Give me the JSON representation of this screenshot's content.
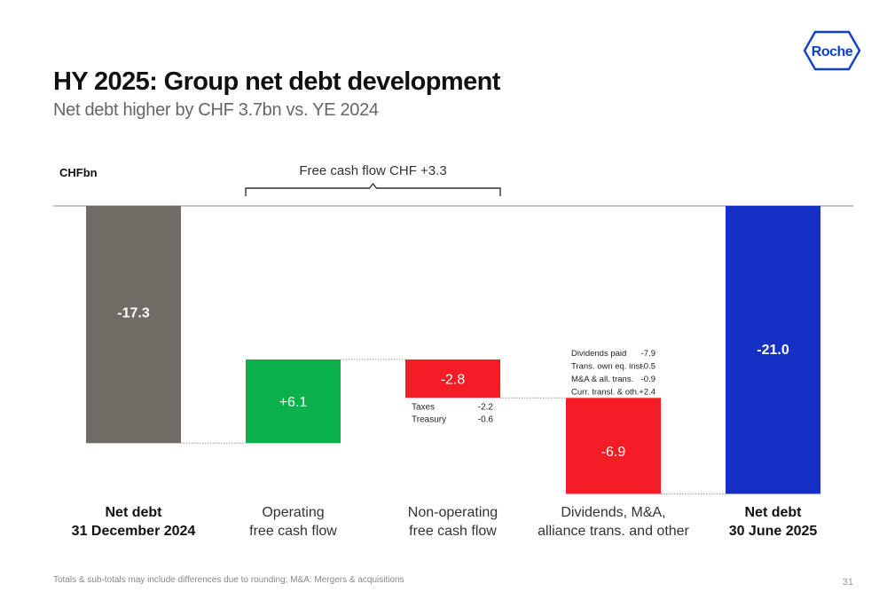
{
  "slide": {
    "title": "HY 2025: Group net debt development",
    "subtitle": "Net debt higher by CHF 3.7bn vs. YE 2024",
    "logo_text": "Roche",
    "footnote": "Totals & sub-totals may include differences due to rounding; M&A: Mergers & acquisitions",
    "page_number": "31"
  },
  "chart_data": {
    "type": "waterfall",
    "unit_label": "CHFbn",
    "bracket_label": "Free cash flow CHF +3.3",
    "bars": [
      {
        "label": [
          "Net debt",
          "31 December 2024"
        ],
        "bold": true,
        "value_label": "-17.3",
        "start": 0,
        "end": -17.3,
        "color": "#716b66"
      },
      {
        "label": [
          "Operating",
          "free cash flow"
        ],
        "bold": false,
        "value_label": "+6.1",
        "start": -17.3,
        "end": -11.2,
        "color": "#0ab04a"
      },
      {
        "label": [
          "Non-operating",
          "free cash flow"
        ],
        "bold": false,
        "value_label": "-2.8",
        "start": -11.2,
        "end": -14.0,
        "color": "#f41d26"
      },
      {
        "label": [
          "Dividends, M&A,",
          "alliance trans. and other"
        ],
        "bold": false,
        "value_label": "-6.9",
        "start": -14.0,
        "end": -21.0,
        "color": "#f41d26"
      },
      {
        "label": [
          "Net debt",
          "30 June 2025"
        ],
        "bold": true,
        "value_label": "-21.0",
        "start": 0,
        "end": -21.0,
        "color": "#1530c4"
      }
    ],
    "breakdowns": [
      {
        "bar": 2,
        "items": [
          {
            "name": "Taxes",
            "value": "-2.2"
          },
          {
            "name": "Treasury",
            "value": "-0.6"
          }
        ]
      },
      {
        "bar": 3,
        "items": [
          {
            "name": "Dividends paid",
            "value": "-7.9"
          },
          {
            "name": "Trans. own eq. inst.",
            "value": "-0.5"
          },
          {
            "name": "M&A & all. trans.",
            "value": "-0.9"
          },
          {
            "name": "Curr. transl. & oth.",
            "value": "+2.4"
          }
        ]
      }
    ],
    "colors": {
      "axis": "#888888",
      "connector": "#999999",
      "bracket": "#333333"
    }
  }
}
